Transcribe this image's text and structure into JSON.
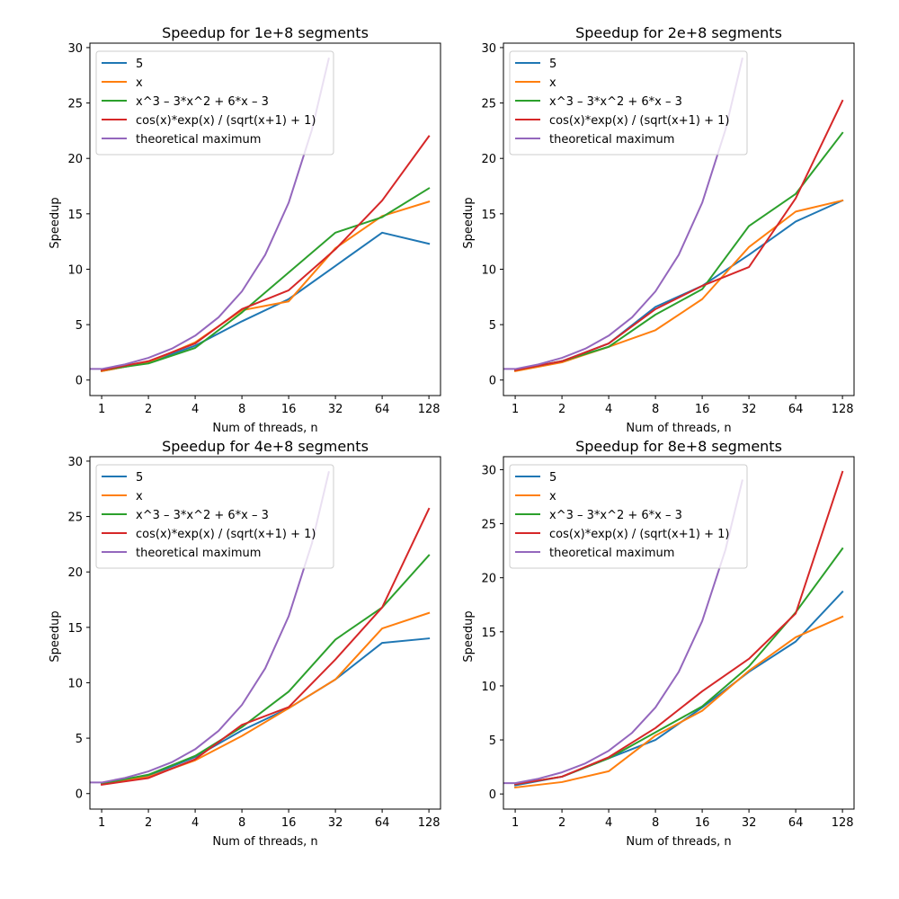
{
  "chart_data": [
    {
      "type": "line",
      "title": "Speedup for 1e+8 segments",
      "xlabel": "Num of threads, n",
      "ylabel": "Speedup",
      "x_scale": "log2",
      "xlim": [
        0.84,
        152
      ],
      "ylim": [
        -1.4,
        30.4
      ],
      "x_ticks": [
        1,
        2,
        4,
        8,
        16,
        32,
        64,
        128
      ],
      "y_ticks": [
        0,
        5,
        10,
        15,
        20,
        25,
        30
      ],
      "legend_position": "upper-left",
      "grid": false,
      "series": [
        {
          "name": "5",
          "color": "#1f77b4",
          "x": [
            1,
            2,
            4,
            8,
            16,
            32,
            64,
            128
          ],
          "y": [
            0.8,
            1.6,
            3.1,
            5.3,
            7.3,
            10.3,
            13.3,
            12.3
          ]
        },
        {
          "name": "x",
          "color": "#ff7f0e",
          "x": [
            1,
            2,
            4,
            8,
            16,
            32,
            64,
            128
          ],
          "y": [
            0.8,
            1.6,
            3.4,
            6.3,
            7.1,
            11.9,
            14.8,
            16.1
          ]
        },
        {
          "name": "x^3 – 3*x^2 + 6*x – 3",
          "color": "#2ca02c",
          "x": [
            1,
            2,
            4,
            8,
            16,
            32,
            64,
            128
          ],
          "y": [
            0.9,
            1.5,
            2.9,
            6.1,
            9.7,
            13.3,
            14.7,
            17.3
          ]
        },
        {
          "name": "cos(x)*exp(x) / (sqrt(x+1) + 1)",
          "color": "#d62728",
          "x": [
            1,
            2,
            4,
            8,
            16,
            32,
            64,
            128
          ],
          "y": [
            0.9,
            1.7,
            3.3,
            6.4,
            8.1,
            11.8,
            16.2,
            22.0
          ]
        },
        {
          "name": "theoretical maximum",
          "color": "#9467bd",
          "x": [
            0.84,
            1,
            1.41,
            2,
            2.83,
            4,
            5.66,
            8,
            11.3,
            16,
            22.6,
            29
          ],
          "y": [
            1,
            1,
            1.41,
            2,
            2.83,
            4,
            5.66,
            8,
            11.3,
            16,
            22.6,
            29
          ]
        }
      ]
    },
    {
      "type": "line",
      "title": "Speedup for 2e+8 segments",
      "xlabel": "Num of threads, n",
      "ylabel": "Speedup",
      "x_scale": "log2",
      "xlim": [
        0.84,
        152
      ],
      "ylim": [
        -1.4,
        30.4
      ],
      "x_ticks": [
        1,
        2,
        4,
        8,
        16,
        32,
        64,
        128
      ],
      "y_ticks": [
        0,
        5,
        10,
        15,
        20,
        25,
        30
      ],
      "legend_position": "upper-left",
      "grid": false,
      "series": [
        {
          "name": "5",
          "color": "#1f77b4",
          "x": [
            1,
            2,
            4,
            8,
            16,
            32,
            64,
            128
          ],
          "y": [
            0.9,
            1.7,
            3.3,
            6.6,
            8.5,
            11.3,
            14.3,
            16.2
          ]
        },
        {
          "name": "x",
          "color": "#ff7f0e",
          "x": [
            1,
            2,
            4,
            8,
            16,
            32,
            64,
            128
          ],
          "y": [
            0.8,
            1.6,
            3.0,
            4.5,
            7.3,
            12.0,
            15.2,
            16.2
          ]
        },
        {
          "name": "x^3 – 3*x^2 + 6*x – 3",
          "color": "#2ca02c",
          "x": [
            1,
            2,
            4,
            8,
            16,
            32,
            64,
            128
          ],
          "y": [
            0.9,
            1.7,
            3.0,
            5.9,
            8.2,
            13.9,
            16.8,
            22.3
          ]
        },
        {
          "name": "cos(x)*exp(x) / (sqrt(x+1) + 1)",
          "color": "#d62728",
          "x": [
            1,
            2,
            4,
            8,
            16,
            32,
            64,
            128
          ],
          "y": [
            0.9,
            1.7,
            3.3,
            6.4,
            8.5,
            10.2,
            16.4,
            25.2
          ]
        },
        {
          "name": "theoretical maximum",
          "color": "#9467bd",
          "x": [
            0.84,
            1,
            1.41,
            2,
            2.83,
            4,
            5.66,
            8,
            11.3,
            16,
            22.6,
            29
          ],
          "y": [
            1,
            1,
            1.41,
            2,
            2.83,
            4,
            5.66,
            8,
            11.3,
            16,
            22.6,
            29
          ]
        }
      ]
    },
    {
      "type": "line",
      "title": "Speedup for 4e+8 segments",
      "xlabel": "Num of threads, n",
      "ylabel": "Speedup",
      "x_scale": "log2",
      "xlim": [
        0.84,
        152
      ],
      "ylim": [
        -1.4,
        30.4
      ],
      "x_ticks": [
        1,
        2,
        4,
        8,
        16,
        32,
        64,
        128
      ],
      "y_ticks": [
        0,
        5,
        10,
        15,
        20,
        25,
        30
      ],
      "legend_position": "upper-left",
      "grid": false,
      "series": [
        {
          "name": "5",
          "color": "#1f77b4",
          "x": [
            1,
            2,
            4,
            8,
            16,
            32,
            64,
            128
          ],
          "y": [
            0.9,
            1.6,
            3.3,
            5.7,
            7.7,
            10.3,
            13.6,
            14.0
          ]
        },
        {
          "name": "x",
          "color": "#ff7f0e",
          "x": [
            1,
            2,
            4,
            8,
            16,
            32,
            64,
            128
          ],
          "y": [
            0.9,
            1.5,
            3.0,
            5.2,
            7.7,
            10.3,
            14.9,
            16.3
          ]
        },
        {
          "name": "x^3 – 3*x^2 + 6*x – 3",
          "color": "#2ca02c",
          "x": [
            1,
            2,
            4,
            8,
            16,
            32,
            64,
            128
          ],
          "y": [
            0.9,
            1.7,
            3.4,
            6.0,
            9.2,
            13.9,
            16.8,
            21.5
          ]
        },
        {
          "name": "cos(x)*exp(x) / (sqrt(x+1) + 1)",
          "color": "#d62728",
          "x": [
            1,
            2,
            4,
            8,
            16,
            32,
            64,
            128
          ],
          "y": [
            0.8,
            1.4,
            3.1,
            6.2,
            7.8,
            12.1,
            16.8,
            25.7
          ]
        },
        {
          "name": "theoretical maximum",
          "color": "#9467bd",
          "x": [
            0.84,
            1,
            1.41,
            2,
            2.83,
            4,
            5.66,
            8,
            11.3,
            16,
            22.6,
            29
          ],
          "y": [
            1,
            1,
            1.41,
            2,
            2.83,
            4,
            5.66,
            8,
            11.3,
            16,
            22.6,
            29
          ]
        }
      ]
    },
    {
      "type": "line",
      "title": "Speedup for 8e+8 segments",
      "xlabel": "Num of threads, n",
      "ylabel": "Speedup",
      "x_scale": "log2",
      "xlim": [
        0.84,
        152
      ],
      "ylim": [
        -1.4,
        31.2
      ],
      "x_ticks": [
        1,
        2,
        4,
        8,
        16,
        32,
        64,
        128
      ],
      "y_ticks": [
        0,
        5,
        10,
        15,
        20,
        25,
        30
      ],
      "legend_position": "upper-left",
      "grid": false,
      "series": [
        {
          "name": "5",
          "color": "#1f77b4",
          "x": [
            1,
            2,
            4,
            8,
            16,
            32,
            64,
            128
          ],
          "y": [
            0.8,
            1.6,
            3.3,
            5.0,
            8.0,
            11.3,
            14.1,
            18.7
          ]
        },
        {
          "name": "x",
          "color": "#ff7f0e",
          "x": [
            1,
            2,
            4,
            8,
            16,
            32,
            64,
            128
          ],
          "y": [
            0.6,
            1.1,
            2.1,
            5.4,
            7.7,
            11.4,
            14.5,
            16.4
          ]
        },
        {
          "name": "x^3 – 3*x^2 + 6*x – 3",
          "color": "#2ca02c",
          "x": [
            1,
            2,
            4,
            8,
            16,
            32,
            64,
            128
          ],
          "y": [
            0.9,
            1.6,
            3.3,
            5.7,
            8.1,
            11.8,
            16.8,
            22.7
          ]
        },
        {
          "name": "cos(x)*exp(x) / (sqrt(x+1) + 1)",
          "color": "#d62728",
          "x": [
            1,
            2,
            4,
            8,
            16,
            32,
            64,
            128
          ],
          "y": [
            0.9,
            1.6,
            3.4,
            6.1,
            9.5,
            12.5,
            16.7,
            29.8
          ]
        },
        {
          "name": "theoretical maximum",
          "color": "#9467bd",
          "x": [
            0.84,
            1,
            1.41,
            2,
            2.83,
            4,
            5.66,
            8,
            11.3,
            16,
            22.6,
            29
          ],
          "y": [
            1,
            1,
            1.41,
            2,
            2.83,
            4,
            5.66,
            8,
            11.3,
            16,
            22.6,
            29
          ]
        }
      ]
    }
  ]
}
